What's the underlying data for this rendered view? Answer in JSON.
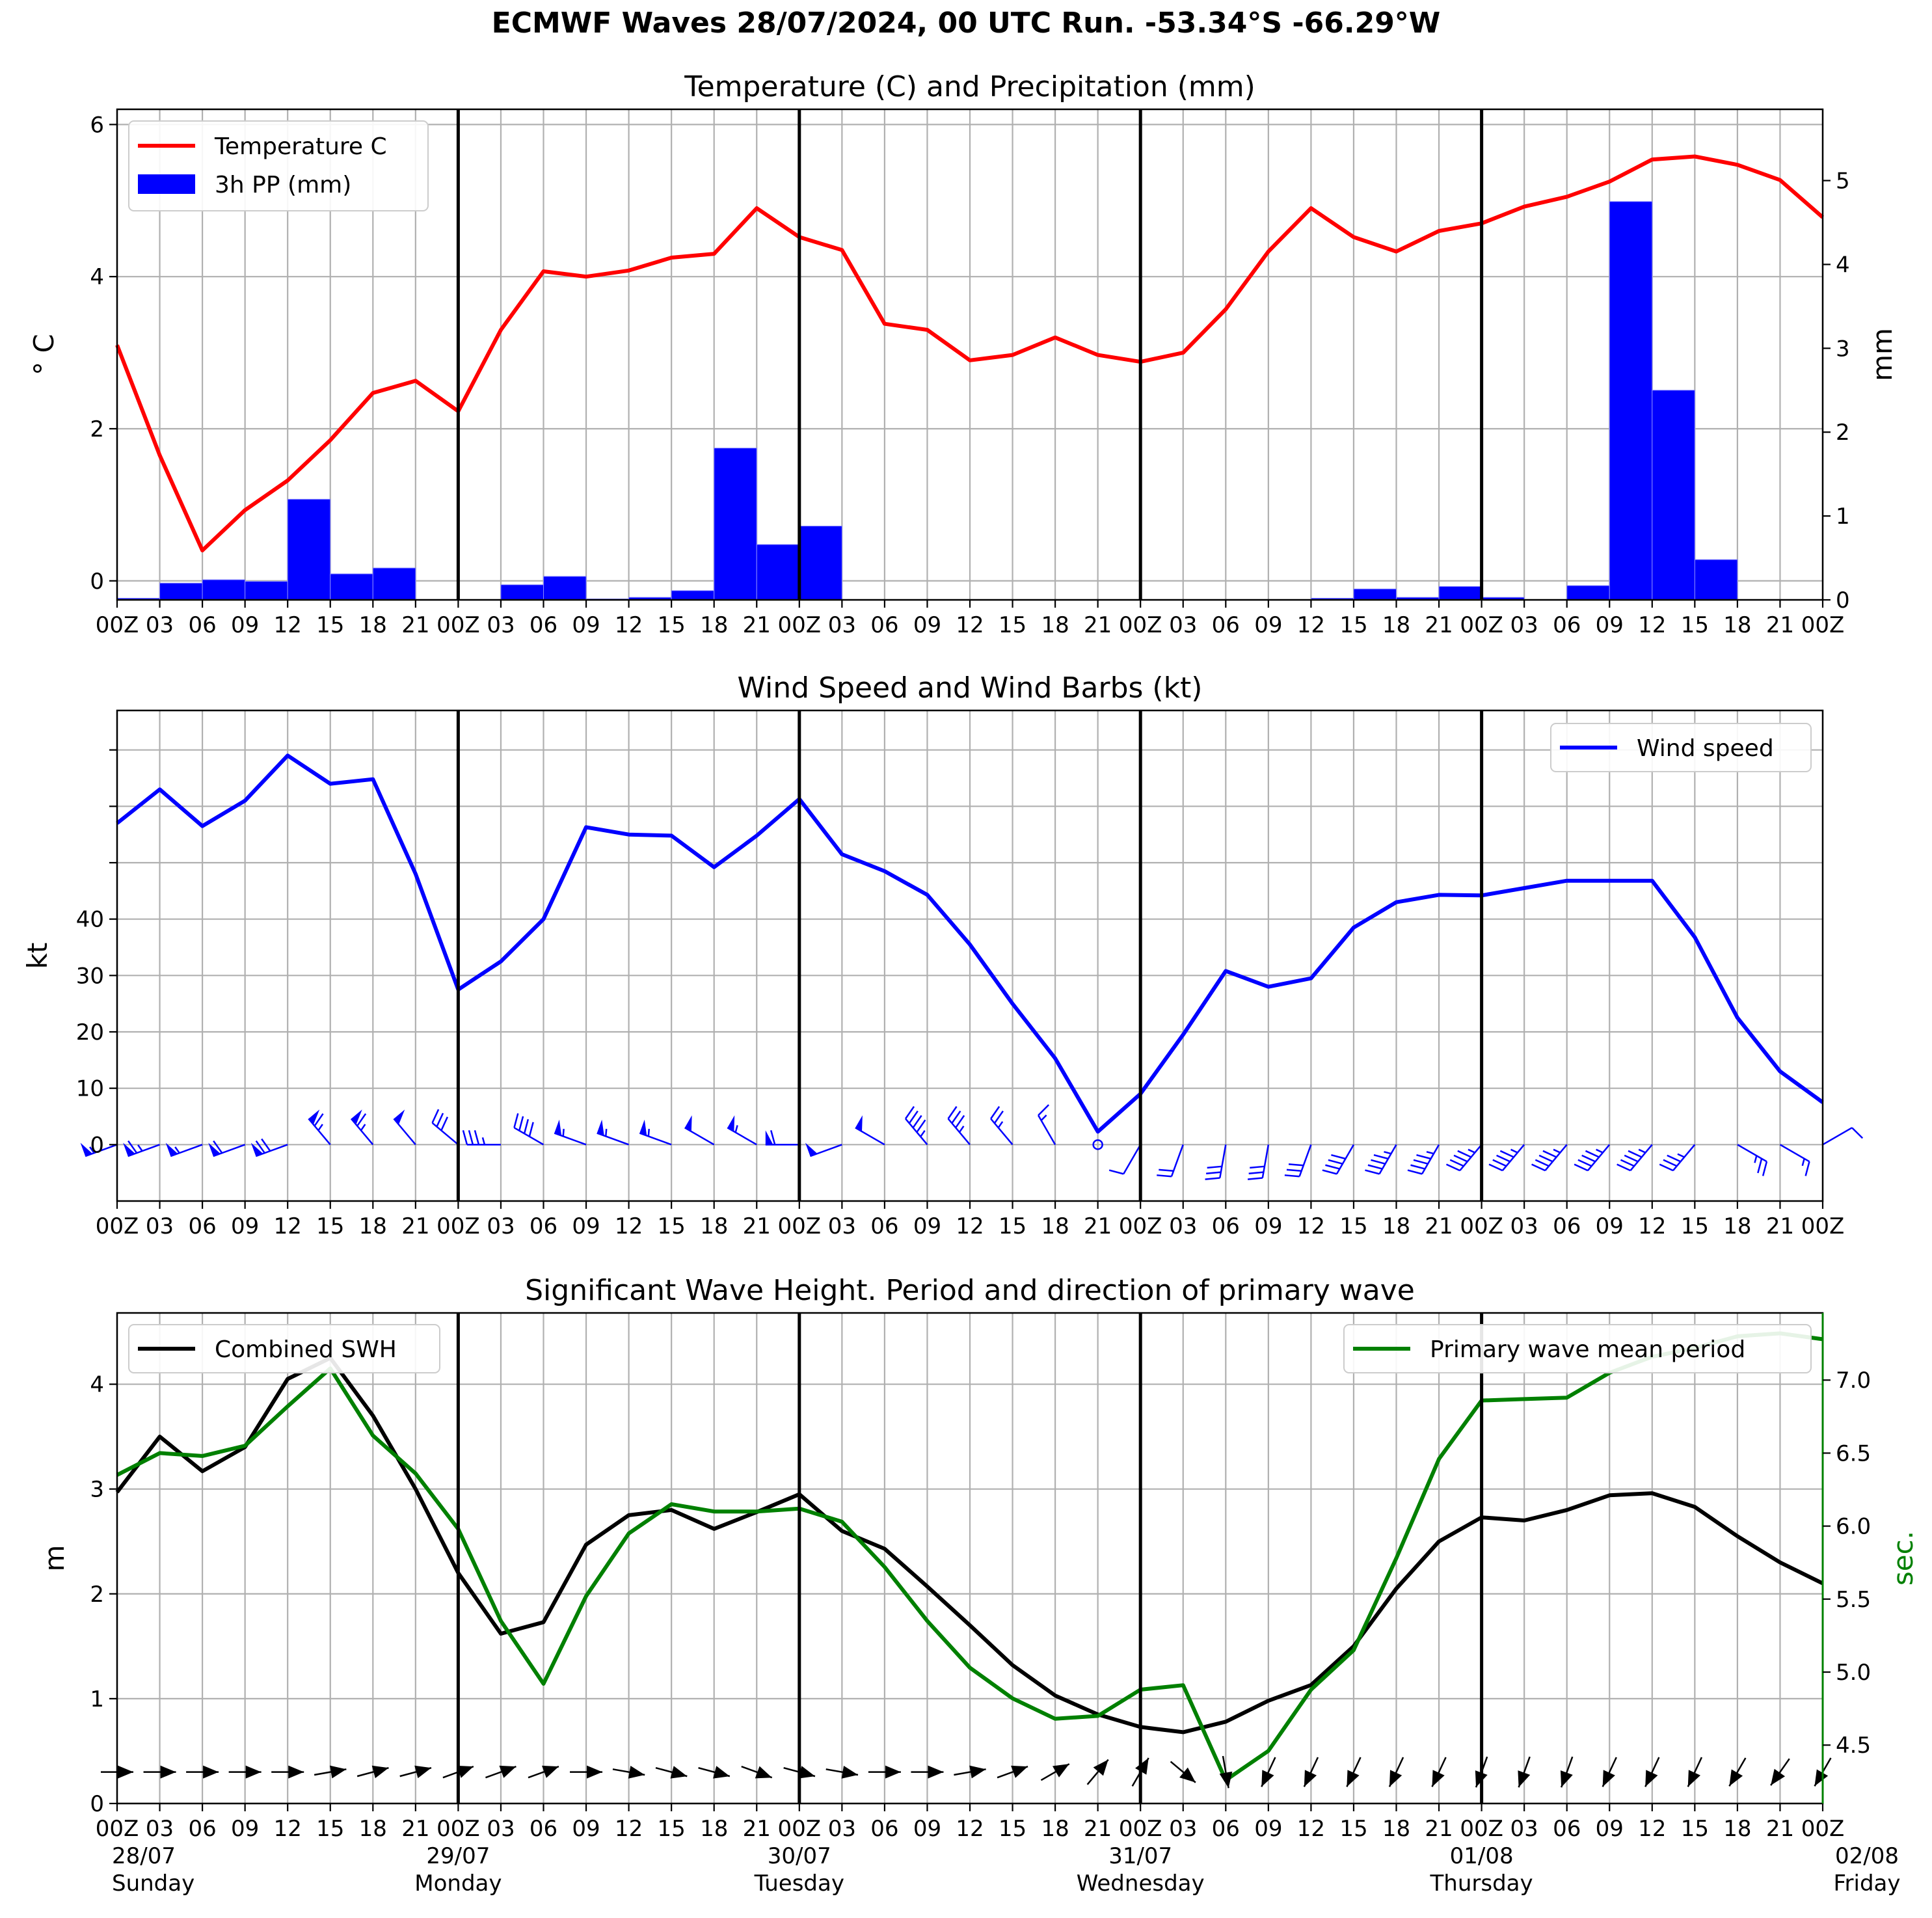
{
  "figure": {
    "title": "ECMWF Waves 28/07/2024, 00 UTC Run. -53.34°S -66.29°W"
  },
  "x_axis": {
    "hour_ticks": [
      "00Z",
      "03",
      "06",
      "09",
      "12",
      "15",
      "18",
      "21",
      "00Z",
      "03",
      "06",
      "09",
      "12",
      "15",
      "18",
      "21",
      "00Z",
      "03",
      "06",
      "09",
      "12",
      "15",
      "18",
      "21",
      "00Z",
      "03",
      "06",
      "09",
      "12",
      "15",
      "18",
      "21",
      "00Z",
      "03",
      "06",
      "09",
      "12",
      "15",
      "18",
      "21",
      "00Z"
    ],
    "day_labels": [
      {
        "date": "28/07",
        "day": "Sunday",
        "step": 0
      },
      {
        "date": "29/07",
        "day": "Monday",
        "step": 8
      },
      {
        "date": "30/07",
        "day": "Tuesday",
        "step": 16
      },
      {
        "date": "31/07",
        "day": "Wednesday",
        "step": 24
      },
      {
        "date": "01/08",
        "day": "Thursday",
        "step": 32
      },
      {
        "date": "02/08",
        "day": "Friday",
        "step": 40
      }
    ],
    "step_hours": 3,
    "day_separators": [
      8,
      16,
      24,
      32
    ]
  },
  "colors": {
    "temperature": "#ff0000",
    "precip": "#0000ff",
    "wind": "#0000ff",
    "swh": "#000000",
    "period": "#008000",
    "grid": "#b0b0b0"
  },
  "chart_data": [
    {
      "type": "line",
      "title": "Temperature (C) and Precipitation (mm)",
      "ylabel": "° C",
      "ylabel_right": "mm",
      "ylim": [
        -0.25,
        6.2
      ],
      "ylim_right": [
        0,
        5.85
      ],
      "yticks": [
        0,
        2,
        4,
        6
      ],
      "yticks_right": [
        0,
        1,
        2,
        3,
        4,
        5
      ],
      "legend": "top-left",
      "series": [
        {
          "name": "Temperature C",
          "kind": "line",
          "axis": "left",
          "values": [
            3.1,
            1.65,
            0.4,
            0.93,
            1.32,
            1.85,
            2.47,
            2.63,
            2.23,
            3.3,
            4.07,
            4.0,
            4.08,
            4.25,
            4.3,
            4.9,
            4.52,
            4.35,
            3.38,
            3.3,
            2.9,
            2.97,
            3.2,
            2.97,
            2.88,
            3.0,
            3.57,
            4.33,
            4.9,
            4.52,
            4.33,
            4.6,
            4.7,
            4.92,
            5.05,
            5.25,
            5.54,
            5.58,
            5.47,
            5.27,
            4.78
          ]
        },
        {
          "name": "3h PP (mm)",
          "kind": "bar",
          "axis": "right",
          "values": [
            0.02,
            0.2,
            0.24,
            0.22,
            1.2,
            0.31,
            0.38,
            0,
            0,
            0.18,
            0.28,
            0.01,
            0.03,
            0.11,
            1.81,
            0.66,
            0.88,
            0,
            0,
            0,
            0,
            0,
            0,
            0,
            0,
            0,
            0,
            0,
            0.02,
            0.13,
            0.03,
            0.16,
            0.03,
            0,
            0.17,
            4.75,
            2.5,
            0.48,
            0,
            0,
            0
          ]
        }
      ]
    },
    {
      "type": "line",
      "title": "Wind Speed and Wind Barbs (kt)",
      "ylabel": "kt",
      "ylim": [
        -10,
        77
      ],
      "yticks": [
        0,
        10,
        20,
        30,
        40
      ],
      "legend": "top-right",
      "series": [
        {
          "name": "Wind speed",
          "kind": "line",
          "values": [
            57,
            63,
            56.5,
            61,
            69,
            64,
            64.8,
            48,
            27.5,
            32.5,
            40,
            56.3,
            55,
            54.8,
            49.2,
            54.8,
            61.3,
            51.5,
            48.5,
            44.3,
            35.5,
            25,
            15.3,
            2.3,
            9,
            19.5,
            30.8,
            28,
            29.5,
            38.5,
            43,
            44.3,
            44.2,
            45.5,
            46.8,
            46.8,
            46.8,
            36.8,
            22.5,
            13,
            7.5
          ]
        },
        {
          "name": "wind barb direction (deg, from)",
          "kind": "barb",
          "values": [
            250,
            250,
            250,
            250,
            250,
            320,
            320,
            320,
            310,
            270,
            300,
            290,
            290,
            290,
            300,
            300,
            270,
            250,
            300,
            320,
            320,
            320,
            330,
            0,
            210,
            200,
            190,
            190,
            200,
            210,
            210,
            210,
            220,
            220,
            220,
            220,
            220,
            220,
            120,
            120,
            60
          ]
        }
      ]
    },
    {
      "type": "line",
      "title": "Significant Wave Height. Period and direction of primary wave",
      "ylabel": "m",
      "ylabel_right": "sec.",
      "ylim": [
        0,
        4.68
      ],
      "ylim_right": [
        4.1,
        7.46
      ],
      "yticks": [
        0,
        1,
        2,
        3,
        4
      ],
      "yticks_right": [
        4.5,
        5.0,
        5.5,
        6.0,
        6.5,
        7.0
      ],
      "series": [
        {
          "name": "Combined SWH",
          "kind": "line",
          "axis": "left",
          "legend": "top-left",
          "values": [
            2.97,
            3.5,
            3.17,
            3.4,
            4.05,
            4.25,
            3.7,
            3.0,
            2.2,
            1.62,
            1.73,
            2.47,
            2.75,
            2.8,
            2.62,
            2.78,
            2.95,
            2.6,
            2.43,
            2.07,
            1.7,
            1.32,
            1.03,
            0.85,
            0.73,
            0.68,
            0.78,
            0.98,
            1.13,
            1.5,
            2.05,
            2.5,
            2.73,
            2.7,
            2.8,
            2.94,
            2.96,
            2.83,
            2.55,
            2.3,
            2.1
          ]
        },
        {
          "name": "Primary wave mean period",
          "kind": "line",
          "axis": "right",
          "legend": "top-right",
          "values": [
            6.35,
            6.5,
            6.48,
            6.55,
            6.82,
            7.08,
            6.62,
            6.36,
            5.98,
            5.35,
            4.92,
            5.52,
            5.95,
            6.15,
            6.1,
            6.1,
            6.12,
            6.03,
            5.72,
            5.35,
            5.03,
            4.82,
            4.68,
            4.7,
            4.88,
            4.91,
            4.26,
            4.46,
            4.88,
            5.15,
            5.78,
            6.46,
            6.86,
            6.87,
            6.88,
            7.05,
            7.16,
            7.22,
            7.3,
            7.32,
            7.28
          ]
        },
        {
          "name": "primary wave direction (deg, toward)",
          "kind": "arrow",
          "values": [
            90,
            90,
            90,
            90,
            90,
            80,
            75,
            75,
            70,
            70,
            70,
            90,
            100,
            105,
            105,
            110,
            105,
            100,
            90,
            90,
            80,
            70,
            60,
            40,
            30,
            130,
            170,
            205,
            205,
            205,
            205,
            205,
            200,
            200,
            200,
            205,
            205,
            205,
            210,
            215,
            210
          ]
        }
      ]
    }
  ]
}
